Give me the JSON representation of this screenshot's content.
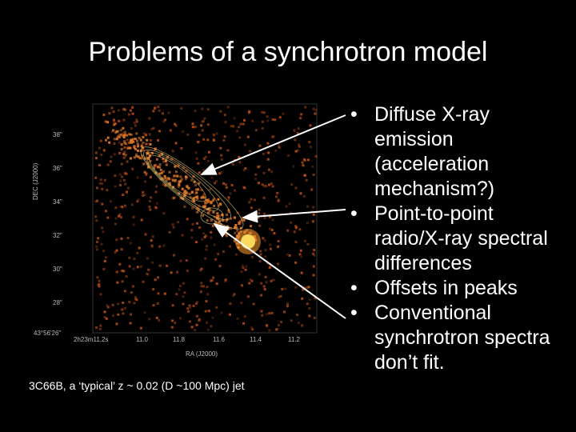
{
  "slide": {
    "title": "Problems of a synchrotron model",
    "caption": "3C66B, a ‘typical’ z ~ 0.02 (D ~100 Mpc) jet",
    "bullet_glyph": "•",
    "bullets": [
      "Diffuse X-ray emission (acceleration mechanism?)",
      "Point-to-point radio/X-ray spectral differences",
      "Offsets in peaks",
      "Conventional synchrotron spectra don’t fit."
    ]
  },
  "figure": {
    "y_axis_label": "DEC (J2000)",
    "x_axis_label": "RA (J2000)",
    "y_ticks": [
      "38\"",
      "36\"",
      "34\"",
      "32\"",
      "30\"",
      "28\"",
      "43°56'26\""
    ],
    "x_ticks": [
      "2h23m11.2s",
      "11.0",
      "11.8",
      "11.6",
      "11.4",
      "11.2"
    ],
    "colors": {
      "background": "#000000",
      "hotspot": "#ffe060",
      "counts": "#c0501a",
      "contours": "#d8c070"
    }
  }
}
